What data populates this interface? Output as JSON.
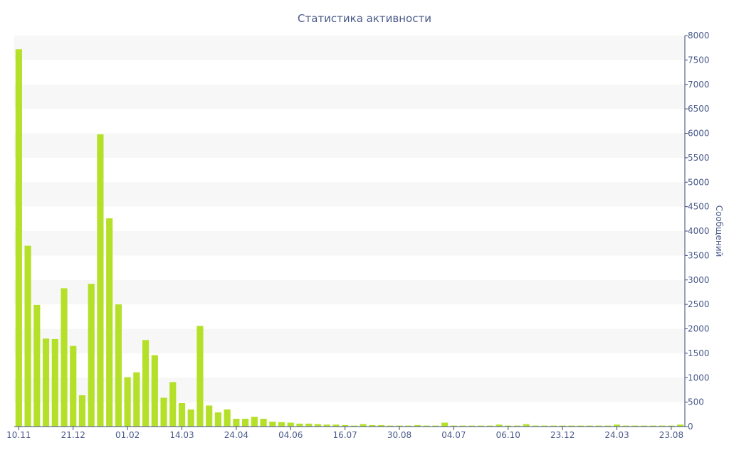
{
  "chart_data": {
    "type": "bar",
    "title": "Статистика активности",
    "ylabel": "Сообщений",
    "xlabel": "",
    "ylim": [
      0,
      8000
    ],
    "y_ticks": [
      0,
      500,
      1000,
      1500,
      2000,
      2500,
      3000,
      3500,
      4000,
      4500,
      5000,
      5500,
      6000,
      6500,
      7000,
      7500,
      8000
    ],
    "x_tick_labels": [
      "10.11",
      "21.12",
      "01.02",
      "14.03",
      "24.04",
      "04.06",
      "16.07",
      "30.08",
      "04.07",
      "06.10",
      "23.12",
      "24.03",
      "23.08"
    ],
    "x_tick_bar_index": [
      0,
      6,
      12,
      18,
      24,
      30,
      36,
      42,
      48,
      54,
      60,
      66,
      72
    ],
    "grid": "horizontal bands",
    "y_axis_side": "right",
    "values": [
      7720,
      3700,
      2490,
      1800,
      1790,
      2830,
      1650,
      640,
      2920,
      5980,
      4260,
      2500,
      1010,
      1110,
      1770,
      1460,
      590,
      910,
      480,
      350,
      2060,
      430,
      290,
      350,
      160,
      160,
      200,
      160,
      100,
      90,
      80,
      60,
      60,
      50,
      40,
      40,
      30,
      20,
      50,
      30,
      30,
      20,
      20,
      20,
      30,
      20,
      20,
      80,
      20,
      20,
      20,
      20,
      20,
      40,
      20,
      20,
      50,
      20,
      20,
      20,
      20,
      20,
      20,
      20,
      20,
      20,
      40,
      20,
      20,
      20,
      20,
      20,
      20,
      40
    ]
  },
  "colors": {
    "bar": "#b5e02a",
    "band": "#f7f7f7",
    "axis": "#3a4a7a",
    "text": "#4a5a8a"
  }
}
